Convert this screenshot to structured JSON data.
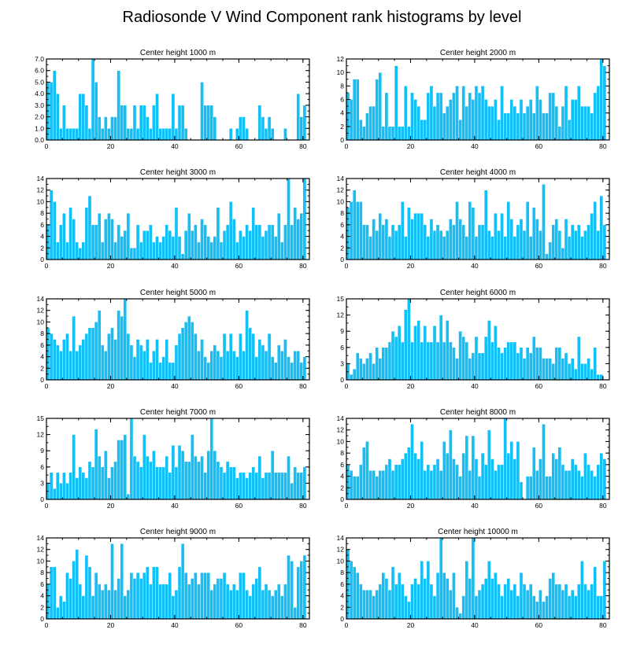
{
  "figure": {
    "title": "Radiosonde V Wind Component rank histograms by level"
  },
  "chart_data": [
    {
      "type": "bar",
      "title": "Center height 1000 m",
      "xlim": [
        0,
        82
      ],
      "xticks": [
        0,
        20,
        40,
        60,
        80
      ],
      "ylim": [
        0,
        7
      ],
      "yticks": [
        0,
        1,
        2,
        3,
        4,
        5,
        6,
        7
      ],
      "ytick_labels": [
        "0.0",
        "1.0",
        "2.0",
        "3.0",
        "4.0",
        "5.0",
        "6.0",
        "7.0"
      ],
      "values": [
        5,
        5,
        6,
        4,
        1,
        3,
        1,
        1,
        1,
        1,
        4,
        4,
        3,
        1,
        7,
        5,
        2,
        1,
        2,
        1,
        2,
        2,
        6,
        3,
        3,
        1,
        1,
        3,
        1,
        3,
        3,
        2,
        1,
        3,
        4,
        1,
        1,
        1,
        1,
        4,
        1,
        3,
        3,
        1,
        0,
        0,
        0,
        0,
        5,
        3,
        3,
        3,
        2,
        0,
        0,
        0,
        0,
        1,
        0,
        1,
        2,
        2,
        1,
        0,
        0,
        0,
        3,
        2,
        1,
        2,
        1,
        0,
        0,
        0,
        1,
        0,
        0,
        0,
        4,
        2,
        3
      ]
    },
    {
      "type": "bar",
      "title": "Center height 2000 m",
      "xlim": [
        0,
        82
      ],
      "xticks": [
        0,
        20,
        40,
        60,
        80
      ],
      "ylim": [
        0,
        12
      ],
      "yticks": [
        0,
        2,
        4,
        6,
        8,
        10,
        12
      ],
      "ytick_labels": [
        "0",
        "2",
        "4",
        "6",
        "8",
        "10",
        "12"
      ],
      "values": [
        7,
        6,
        9,
        9,
        3,
        2,
        4,
        5,
        5,
        9,
        10,
        2,
        7,
        2,
        2,
        11,
        2,
        2,
        8,
        2,
        7,
        6,
        5,
        3,
        3,
        7,
        8,
        5,
        7,
        7,
        4,
        5,
        6,
        7,
        8,
        3,
        8,
        5,
        7,
        6,
        8,
        7,
        8,
        6,
        5,
        5,
        6,
        3,
        8,
        4,
        4,
        6,
        5,
        4,
        6,
        4,
        5,
        6,
        4,
        8,
        6,
        4,
        4,
        7,
        7,
        5,
        2,
        5,
        8,
        3,
        6,
        6,
        8,
        5,
        5,
        5,
        4,
        7,
        8,
        12,
        11
      ]
    },
    {
      "type": "bar",
      "title": "Center height 3000 m",
      "xlim": [
        0,
        82
      ],
      "xticks": [
        0,
        20,
        40,
        60,
        80
      ],
      "ylim": [
        0,
        14
      ],
      "yticks": [
        0,
        2,
        4,
        6,
        8,
        10,
        12,
        14
      ],
      "ytick_labels": [
        "0",
        "2",
        "4",
        "6",
        "8",
        "10",
        "12",
        "14"
      ],
      "values": [
        6,
        12,
        10,
        3,
        6,
        8,
        3,
        9,
        7,
        3,
        2,
        3,
        9,
        11,
        6,
        6,
        8,
        3,
        7,
        8,
        7,
        3,
        6,
        4,
        5,
        8,
        2,
        2,
        6,
        3,
        5,
        5,
        6,
        3,
        4,
        3,
        4,
        6,
        5,
        4,
        9,
        4,
        1,
        5,
        8,
        5,
        6,
        3,
        7,
        6,
        4,
        3,
        4,
        9,
        3,
        5,
        6,
        10,
        7,
        3,
        5,
        4,
        6,
        5,
        9,
        6,
        6,
        4,
        5,
        6,
        6,
        4,
        8,
        3,
        6,
        14,
        6,
        9,
        7,
        8,
        14
      ]
    },
    {
      "type": "bar",
      "title": "Center height 4000 m",
      "xlim": [
        0,
        82
      ],
      "xticks": [
        0,
        20,
        40,
        60,
        80
      ],
      "ylim": [
        0,
        14
      ],
      "yticks": [
        0,
        2,
        4,
        6,
        8,
        10,
        12,
        14
      ],
      "ytick_labels": [
        "0",
        "2",
        "4",
        "6",
        "8",
        "10",
        "12",
        "14"
      ],
      "values": [
        9,
        10,
        12,
        10,
        10,
        6,
        6,
        4,
        7,
        5,
        8,
        6,
        7,
        4,
        6,
        5,
        6,
        10,
        4,
        9,
        7,
        8,
        8,
        8,
        6,
        4,
        7,
        5,
        6,
        5,
        4,
        5,
        7,
        6,
        10,
        7,
        6,
        4,
        10,
        9,
        4,
        6,
        6,
        12,
        5,
        4,
        8,
        5,
        8,
        4,
        10,
        7,
        4,
        6,
        7,
        5,
        10,
        4,
        9,
        7,
        5,
        13,
        1,
        3,
        6,
        7,
        5,
        2,
        7,
        4,
        6,
        5,
        6,
        4,
        5,
        6,
        8,
        10,
        5,
        11,
        6
      ]
    },
    {
      "type": "bar",
      "title": "Center height 5000 m",
      "xlim": [
        0,
        82
      ],
      "xticks": [
        0,
        20,
        40,
        60,
        80
      ],
      "ylim": [
        0,
        14
      ],
      "yticks": [
        0,
        2,
        4,
        6,
        8,
        10,
        12,
        14
      ],
      "ytick_labels": [
        "0",
        "2",
        "4",
        "6",
        "8",
        "10",
        "12",
        "14"
      ],
      "values": [
        9,
        8,
        7,
        6,
        5,
        7,
        8,
        5,
        11,
        5,
        6,
        7,
        8,
        9,
        9,
        10,
        12,
        6,
        5,
        8,
        9,
        7,
        12,
        11,
        14,
        8,
        6,
        4,
        7,
        6,
        5,
        7,
        3,
        5,
        7,
        3,
        4,
        7,
        3,
        3,
        6,
        8,
        9,
        10,
        11,
        10,
        8,
        5,
        7,
        4,
        3,
        5,
        6,
        5,
        4,
        8,
        5,
        8,
        5,
        4,
        8,
        5,
        12,
        9,
        8,
        4,
        7,
        6,
        5,
        8,
        4,
        3,
        6,
        5,
        7,
        4,
        3,
        5,
        5,
        3,
        4
      ]
    },
    {
      "type": "bar",
      "title": "Center height 6000 m",
      "xlim": [
        0,
        82
      ],
      "xticks": [
        0,
        20,
        40,
        60,
        80
      ],
      "ylim": [
        0,
        15
      ],
      "yticks": [
        0,
        3,
        6,
        9,
        12,
        15
      ],
      "ytick_labels": [
        "0",
        "3",
        "6",
        "9",
        "12",
        "15"
      ],
      "values": [
        3,
        1,
        2,
        5,
        4,
        3,
        4,
        5,
        3,
        6,
        4,
        6,
        6,
        7,
        9,
        8,
        10,
        7,
        13,
        15,
        7,
        10,
        11,
        7,
        10,
        7,
        7,
        10,
        7,
        12,
        7,
        11,
        7,
        6,
        4,
        9,
        8,
        7,
        4,
        5,
        8,
        5,
        5,
        8,
        11,
        7,
        10,
        6,
        5,
        6,
        7,
        7,
        7,
        5,
        6,
        4,
        6,
        5,
        8,
        6,
        6,
        4,
        4,
        4,
        3,
        6,
        6,
        4,
        5,
        3,
        4,
        2,
        8,
        3,
        3,
        4,
        2,
        6,
        1,
        1,
        0
      ]
    },
    {
      "type": "bar",
      "title": "Center height 7000 m",
      "xlim": [
        0,
        82
      ],
      "xticks": [
        0,
        20,
        40,
        60,
        80
      ],
      "ylim": [
        0,
        15
      ],
      "yticks": [
        0,
        3,
        6,
        9,
        12,
        15
      ],
      "ytick_labels": [
        "0",
        "3",
        "6",
        "9",
        "12",
        "15"
      ],
      "values": [
        3,
        5,
        2,
        5,
        3,
        5,
        3,
        5,
        12,
        4,
        6,
        5,
        4,
        7,
        6,
        13,
        8,
        6,
        9,
        4,
        6,
        7,
        11,
        11,
        12,
        1,
        15,
        8,
        7,
        6,
        12,
        8,
        7,
        9,
        6,
        6,
        6,
        8,
        5,
        10,
        6,
        10,
        9,
        7,
        7,
        12,
        8,
        7,
        8,
        5,
        9,
        15,
        9,
        7,
        6,
        5,
        7,
        6,
        6,
        4,
        5,
        5,
        4,
        5,
        6,
        5,
        8,
        4,
        5,
        5,
        9,
        5,
        5,
        5,
        5,
        8,
        3,
        6,
        5,
        5,
        6
      ]
    },
    {
      "type": "bar",
      "title": "Center height 8000 m",
      "xlim": [
        0,
        82
      ],
      "xticks": [
        0,
        20,
        40,
        60,
        80
      ],
      "ylim": [
        0,
        14
      ],
      "yticks": [
        0,
        2,
        4,
        6,
        8,
        10,
        12,
        14
      ],
      "ytick_labels": [
        "0",
        "2",
        "4",
        "6",
        "8",
        "10",
        "12",
        "14"
      ],
      "values": [
        6,
        5,
        4,
        4,
        6,
        9,
        10,
        5,
        5,
        4,
        5,
        5,
        6,
        7,
        5,
        6,
        6,
        7,
        8,
        9,
        13,
        8,
        7,
        10,
        5,
        6,
        5,
        6,
        7,
        5,
        10,
        8,
        12,
        7,
        6,
        4,
        8,
        11,
        5,
        11,
        7,
        4,
        8,
        6,
        12,
        7,
        5,
        6,
        6,
        14,
        8,
        10,
        7,
        10,
        3,
        0,
        4,
        4,
        9,
        5,
        7,
        13,
        4,
        4,
        8,
        7,
        9,
        6,
        5,
        5,
        7,
        6,
        5,
        4,
        8,
        6,
        5,
        4,
        6,
        8,
        7
      ]
    },
    {
      "type": "bar",
      "title": "Center height 9000 m",
      "xlim": [
        0,
        82
      ],
      "xticks": [
        0,
        20,
        40,
        60,
        80
      ],
      "ylim": [
        0,
        14
      ],
      "yticks": [
        0,
        2,
        4,
        6,
        8,
        10,
        12,
        14
      ],
      "ytick_labels": [
        "0",
        "2",
        "4",
        "6",
        "8",
        "10",
        "12",
        "14"
      ],
      "values": [
        6,
        9,
        9,
        2,
        4,
        3,
        8,
        7,
        10,
        12,
        6,
        4,
        11,
        9,
        4,
        8,
        6,
        5,
        6,
        5,
        13,
        5,
        7,
        13,
        4,
        5,
        8,
        7,
        8,
        7,
        8,
        9,
        6,
        9,
        9,
        6,
        6,
        6,
        8,
        4,
        5,
        9,
        13,
        8,
        6,
        7,
        8,
        6,
        8,
        8,
        8,
        5,
        6,
        7,
        7,
        8,
        6,
        5,
        6,
        5,
        8,
        8,
        5,
        4,
        6,
        7,
        9,
        5,
        6,
        5,
        4,
        5,
        6,
        4,
        6,
        11,
        10,
        2,
        9,
        10,
        11
      ]
    },
    {
      "type": "bar",
      "title": "Center height 10000 m",
      "xlim": [
        0,
        82
      ],
      "xticks": [
        0,
        20,
        40,
        60,
        80
      ],
      "ylim": [
        0,
        14
      ],
      "yticks": [
        0,
        2,
        4,
        6,
        8,
        10,
        12,
        14
      ],
      "ytick_labels": [
        "0",
        "2",
        "4",
        "6",
        "8",
        "10",
        "12",
        "14"
      ],
      "values": [
        12,
        10,
        9,
        8,
        6,
        5,
        5,
        5,
        4,
        5,
        6,
        8,
        7,
        5,
        9,
        6,
        8,
        6,
        4,
        3,
        6,
        7,
        6,
        10,
        7,
        10,
        6,
        4,
        8,
        14,
        8,
        7,
        5,
        8,
        2,
        1,
        4,
        10,
        7,
        14,
        4,
        5,
        6,
        7,
        10,
        7,
        8,
        6,
        4,
        6,
        7,
        5,
        6,
        4,
        8,
        6,
        5,
        6,
        4,
        3,
        5,
        3,
        4,
        7,
        8,
        6,
        6,
        5,
        6,
        4,
        5,
        4,
        6,
        10,
        6,
        5,
        6,
        9,
        4,
        4,
        10
      ]
    }
  ]
}
